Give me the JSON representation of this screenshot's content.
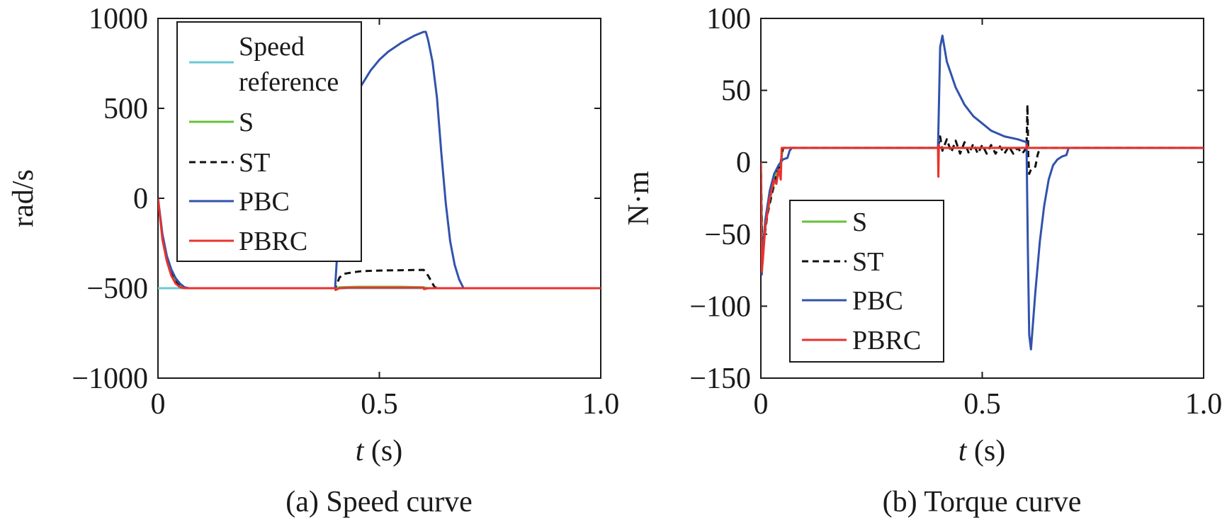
{
  "chart_data": [
    {
      "type": "line",
      "caption": "(a) Speed curve",
      "xlabel_var": "t",
      "xlabel_unit": " (s)",
      "ylabel": "rad/s",
      "xlim": [
        0,
        1.0
      ],
      "ylim": [
        -1000,
        1000
      ],
      "xticks": [
        "0",
        "0.5",
        "1.0"
      ],
      "yticks": [
        "1000",
        "500",
        "0",
        "−500",
        "−1000"
      ],
      "xtick_values": [
        0,
        0.5,
        1.0
      ],
      "ytick_values": [
        1000,
        500,
        0,
        -500,
        -1000
      ],
      "grid": false,
      "legend": "top-left",
      "series": [
        {
          "name": "Speed reference",
          "color": "#6cc9d3",
          "dash": "solid",
          "x": [
            0,
            0.4,
            0.4,
            1.0
          ],
          "y": [
            -500,
            -500,
            -500,
            -500
          ]
        },
        {
          "name": "S",
          "color": "#66c23a",
          "dash": "solid",
          "x": [
            0,
            0.01,
            0.02,
            0.03,
            0.04,
            0.05,
            0.06,
            0.4,
            0.41,
            0.45,
            0.5,
            0.55,
            0.6,
            0.61,
            0.65,
            1.0
          ],
          "y": [
            0,
            -210,
            -330,
            -410,
            -460,
            -490,
            -500,
            -500,
            -495,
            -492,
            -492,
            -492,
            -495,
            -500,
            -500,
            -500
          ]
        },
        {
          "name": "ST",
          "color": "#111111",
          "dash": "dashed",
          "x": [
            0,
            0.01,
            0.02,
            0.03,
            0.04,
            0.05,
            0.06,
            0.4,
            0.41,
            0.42,
            0.44,
            0.46,
            0.5,
            0.55,
            0.6,
            0.61,
            0.625,
            0.64,
            1.0
          ],
          "y": [
            0,
            -220,
            -340,
            -420,
            -465,
            -490,
            -500,
            -500,
            -440,
            -420,
            -412,
            -405,
            -402,
            -400,
            -398,
            -430,
            -495,
            -500,
            -500
          ]
        },
        {
          "name": "PBC",
          "color": "#3152ad",
          "dash": "solid",
          "x": [
            0,
            0.01,
            0.02,
            0.03,
            0.04,
            0.05,
            0.06,
            0.07,
            0.4,
            0.405,
            0.42,
            0.45,
            0.48,
            0.5,
            0.52,
            0.55,
            0.58,
            0.6,
            0.605,
            0.61,
            0.62,
            0.63,
            0.64,
            0.65,
            0.66,
            0.67,
            0.68,
            0.69,
            1.0
          ],
          "y": [
            0,
            -200,
            -320,
            -395,
            -445,
            -475,
            -495,
            -500,
            -500,
            -300,
            410,
            590,
            710,
            770,
            815,
            865,
            905,
            925,
            925,
            880,
            760,
            560,
            250,
            -30,
            -240,
            -370,
            -450,
            -500,
            -500
          ]
        },
        {
          "name": "PBRC",
          "color": "#e8322e",
          "dash": "solid",
          "x": [
            0,
            0.01,
            0.02,
            0.03,
            0.04,
            0.05,
            0.06,
            0.4,
            0.401,
            0.41,
            0.43,
            0.45,
            0.5,
            0.55,
            0.6,
            0.601,
            0.61,
            1.0
          ],
          "y": [
            0,
            -230,
            -350,
            -430,
            -475,
            -495,
            -500,
            -500,
            -510,
            -500,
            -497,
            -497,
            -497,
            -497,
            -497,
            -505,
            -500,
            -500
          ]
        }
      ]
    },
    {
      "type": "line",
      "caption": "(b) Torque curve",
      "xlabel_var": "t",
      "xlabel_unit": " (s)",
      "ylabel": "N·m",
      "xlim": [
        0,
        1.0
      ],
      "ylim": [
        -150,
        100
      ],
      "xticks": [
        "0",
        "0.5",
        "1.0"
      ],
      "yticks": [
        "100",
        "50",
        "0",
        "−50",
        "−100",
        "−150"
      ],
      "xtick_values": [
        0,
        0.5,
        1.0
      ],
      "ytick_values": [
        100,
        50,
        0,
        -50,
        -100,
        -150
      ],
      "grid": false,
      "legend": "bottom-left",
      "series": [
        {
          "name": "S",
          "color": "#66c23a",
          "dash": "solid",
          "x": [
            0,
            0.003,
            0.008,
            0.015,
            0.025,
            0.035,
            0.045,
            0.05,
            0.06,
            1.0
          ],
          "y": [
            0,
            -60,
            -50,
            -35,
            -20,
            -8,
            0,
            10,
            10,
            10
          ]
        },
        {
          "name": "ST",
          "color": "#111111",
          "dash": "dashed",
          "x": [
            0,
            0.003,
            0.008,
            0.015,
            0.025,
            0.035,
            0.045,
            0.05,
            0.4,
            0.405,
            0.41,
            0.42,
            0.43,
            0.44,
            0.45,
            0.46,
            0.47,
            0.48,
            0.49,
            0.5,
            0.51,
            0.52,
            0.53,
            0.54,
            0.55,
            0.56,
            0.57,
            0.58,
            0.59,
            0.6,
            0.602,
            0.604,
            0.606,
            0.61,
            0.62,
            0.625,
            0.63,
            1.0
          ],
          "y": [
            0,
            -62,
            -52,
            -36,
            -22,
            -9,
            0,
            10,
            10,
            18,
            8,
            16,
            7,
            15,
            6,
            14,
            6,
            13,
            6,
            12,
            6,
            12,
            6,
            11,
            6,
            11,
            6,
            10,
            6,
            10,
            40,
            5,
            -8,
            -5,
            -3,
            5,
            10,
            10
          ]
        },
        {
          "name": "PBC",
          "color": "#3152ad",
          "dash": "solid",
          "x": [
            0,
            0.002,
            0.005,
            0.01,
            0.02,
            0.03,
            0.04,
            0.05,
            0.06,
            0.065,
            0.07,
            0.4,
            0.401,
            0.405,
            0.41,
            0.42,
            0.44,
            0.46,
            0.48,
            0.5,
            0.52,
            0.55,
            0.58,
            0.6,
            0.601,
            0.603,
            0.606,
            0.61,
            0.62,
            0.63,
            0.64,
            0.65,
            0.66,
            0.67,
            0.68,
            0.69,
            0.695,
            1.0
          ],
          "y": [
            0,
            -78,
            -60,
            -40,
            -20,
            -8,
            -2,
            2,
            3,
            8,
            10,
            10,
            22,
            80,
            88,
            70,
            52,
            40,
            32,
            27,
            22,
            18,
            16,
            14,
            -10,
            -60,
            -120,
            -130,
            -90,
            -55,
            -30,
            -12,
            -2,
            2,
            4,
            5,
            10,
            10
          ]
        },
        {
          "name": "PBRC",
          "color": "#e8322e",
          "dash": "solid",
          "x": [
            0,
            0.002,
            0.004,
            0.01,
            0.02,
            0.03,
            0.035,
            0.04,
            0.045,
            0.047,
            0.05,
            0.4,
            0.401,
            0.402,
            0.403,
            0.41,
            0.6,
            0.601,
            0.602,
            0.61,
            1.0
          ],
          "y": [
            0,
            -76,
            -70,
            -45,
            -25,
            -12,
            -15,
            -5,
            -12,
            10,
            10,
            10,
            -10,
            12,
            10,
            10,
            10,
            12,
            10,
            10,
            10
          ]
        }
      ]
    }
  ]
}
